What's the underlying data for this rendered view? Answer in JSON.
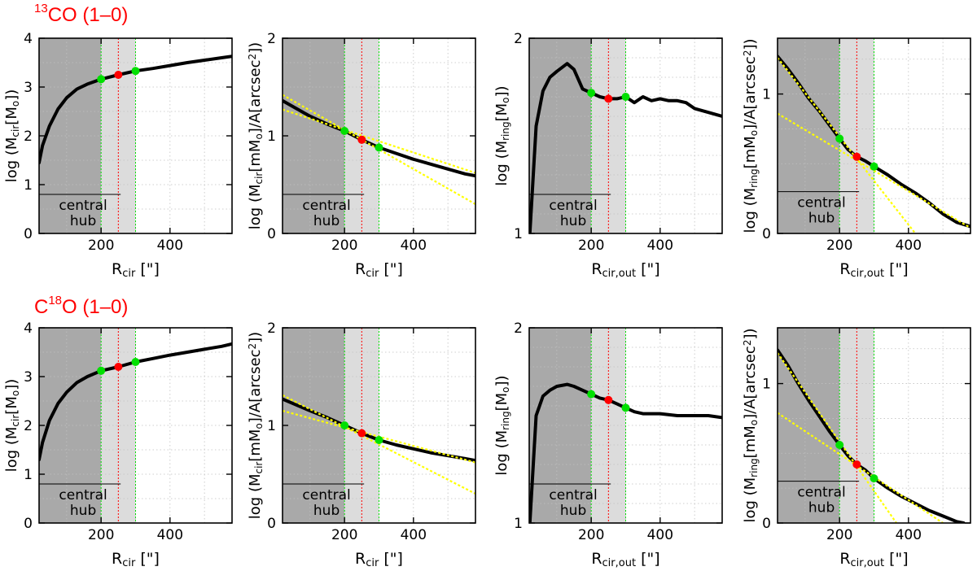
{
  "rows": [
    {
      "title_sup": "13",
      "title_main": "CO  (1–0)"
    },
    {
      "title_main_prefix": "C",
      "title_sup": "18",
      "title_main": "O   (1–0)"
    }
  ],
  "colors": {
    "hub_fill": "#a9a9a9",
    "band_fill": "#dcdcdc",
    "grid": "#c0c0c0",
    "green": "#00e000",
    "red": "#ff0000",
    "fit": "#ffff00",
    "curve": "#000000"
  },
  "chart_data": [
    {
      "type": "line",
      "row": 0,
      "col": 0,
      "ylabel": "log  (M_cir[M_o])",
      "xlabel": "R_cir  [\"]",
      "xlim": [
        20,
        580
      ],
      "ylim": [
        0,
        4
      ],
      "xticks": [
        200,
        400
      ],
      "yticks": [
        0,
        1,
        2,
        3,
        4
      ],
      "hub": [
        20,
        200
      ],
      "band": [
        200,
        300
      ],
      "red_line": 250,
      "hub_label": [
        "central",
        "hub"
      ],
      "hub_label_top": 0.8,
      "series": [
        {
          "name": "curve",
          "x": [
            20,
            30,
            50,
            75,
            100,
            130,
            160,
            200,
            250,
            300,
            350,
            400,
            450,
            500,
            550,
            580
          ],
          "y": [
            1.45,
            1.8,
            2.2,
            2.55,
            2.78,
            2.96,
            3.06,
            3.16,
            3.25,
            3.33,
            3.38,
            3.44,
            3.5,
            3.55,
            3.6,
            3.63
          ]
        }
      ],
      "markers": [
        {
          "x": 200,
          "y": 3.16,
          "color": "green"
        },
        {
          "x": 250,
          "y": 3.25,
          "color": "red"
        },
        {
          "x": 300,
          "y": 3.33,
          "color": "green"
        }
      ]
    },
    {
      "type": "line",
      "row": 0,
      "col": 1,
      "ylabel": "log  (M_cir[mM_o]/A[arcsec^2])",
      "xlabel": "R_cir  [\"]",
      "xlim": [
        20,
        580
      ],
      "ylim": [
        0,
        2
      ],
      "xticks": [
        200,
        400
      ],
      "yticks": [
        0,
        1,
        2
      ],
      "hub": [
        20,
        200
      ],
      "band": [
        200,
        300
      ],
      "red_line": 250,
      "hub_label": [
        "central",
        "hub"
      ],
      "hub_label_top": 0.4,
      "series": [
        {
          "name": "curve",
          "x": [
            20,
            60,
            100,
            150,
            200,
            250,
            300,
            350,
            400,
            450,
            500,
            550,
            580
          ],
          "y": [
            1.36,
            1.28,
            1.2,
            1.12,
            1.05,
            0.96,
            0.88,
            0.82,
            0.76,
            0.71,
            0.66,
            0.61,
            0.59
          ]
        }
      ],
      "fits": [
        {
          "x": [
            20,
            580
          ],
          "y": [
            1.42,
            0.3
          ]
        },
        {
          "x": [
            20,
            580
          ],
          "y": [
            1.27,
            0.62
          ]
        }
      ],
      "markers": [
        {
          "x": 200,
          "y": 1.05,
          "color": "green"
        },
        {
          "x": 250,
          "y": 0.96,
          "color": "red"
        },
        {
          "x": 300,
          "y": 0.88,
          "color": "green"
        }
      ]
    },
    {
      "type": "line",
      "row": 0,
      "col": 2,
      "ylabel": "log  (M_ring[M_o])",
      "xlabel": "R_cir,out  [\"]",
      "xlim": [
        20,
        580
      ],
      "ylim": [
        1,
        2
      ],
      "xticks": [
        200,
        400
      ],
      "yticks": [
        1,
        2
      ],
      "hub": [
        20,
        200
      ],
      "band": [
        200,
        300
      ],
      "red_line": 250,
      "hub_label": [
        "central",
        "hub"
      ],
      "hub_label_top": 1.2,
      "series": [
        {
          "name": "curve",
          "x": [
            22,
            40,
            60,
            80,
            100,
            130,
            150,
            175,
            200,
            225,
            250,
            275,
            300,
            325,
            350,
            375,
            400,
            425,
            450,
            475,
            500,
            540,
            580
          ],
          "y": [
            1.0,
            1.55,
            1.73,
            1.8,
            1.83,
            1.87,
            1.84,
            1.74,
            1.72,
            1.7,
            1.69,
            1.69,
            1.7,
            1.67,
            1.7,
            1.68,
            1.69,
            1.68,
            1.68,
            1.67,
            1.64,
            1.62,
            1.6
          ]
        }
      ],
      "markers": [
        {
          "x": 200,
          "y": 1.72,
          "color": "green"
        },
        {
          "x": 250,
          "y": 1.69,
          "color": "red"
        },
        {
          "x": 300,
          "y": 1.7,
          "color": "green"
        }
      ]
    },
    {
      "type": "line",
      "row": 0,
      "col": 3,
      "ylabel": "log  (M_ring[mM_o]/A[arcsec^2])",
      "xlabel": "R_cir,out  [\"]",
      "xlim": [
        20,
        580
      ],
      "ylim": [
        0,
        1.4
      ],
      "xticks": [
        200,
        400
      ],
      "yticks": [
        0,
        1
      ],
      "hub": [
        20,
        200
      ],
      "band": [
        200,
        300
      ],
      "red_line": 250,
      "hub_label": [
        "central",
        "hub"
      ],
      "hub_label_top": 0.3,
      "series": [
        {
          "name": "curve",
          "x": [
            20,
            50,
            80,
            110,
            140,
            170,
            200,
            225,
            250,
            275,
            300,
            340,
            380,
            420,
            460,
            500,
            540,
            580
          ],
          "y": [
            1.27,
            1.18,
            1.08,
            0.97,
            0.88,
            0.78,
            0.68,
            0.6,
            0.55,
            0.52,
            0.48,
            0.42,
            0.35,
            0.29,
            0.22,
            0.14,
            0.08,
            0.05
          ]
        }
      ],
      "fits": [
        {
          "x": [
            20,
            420
          ],
          "y": [
            1.26,
            0.0
          ]
        },
        {
          "x": [
            20,
            580
          ],
          "y": [
            0.86,
            0.04
          ]
        }
      ],
      "markers": [
        {
          "x": 200,
          "y": 0.68,
          "color": "green"
        },
        {
          "x": 250,
          "y": 0.55,
          "color": "red"
        },
        {
          "x": 300,
          "y": 0.48,
          "color": "green"
        }
      ]
    },
    {
      "type": "line",
      "row": 1,
      "col": 0,
      "ylabel": "log  (M_cir[M_o])",
      "xlabel": "R_cir  [\"]",
      "xlim": [
        20,
        580
      ],
      "ylim": [
        0,
        4
      ],
      "xticks": [
        200,
        400
      ],
      "yticks": [
        0,
        1,
        2,
        3,
        4
      ],
      "hub": [
        20,
        200
      ],
      "band": [
        200,
        300
      ],
      "red_line": 250,
      "hub_label": [
        "central",
        "hub"
      ],
      "hub_label_top": 0.8,
      "series": [
        {
          "name": "curve",
          "x": [
            20,
            30,
            50,
            75,
            100,
            130,
            160,
            200,
            250,
            300,
            350,
            400,
            450,
            500,
            550,
            580
          ],
          "y": [
            1.3,
            1.65,
            2.1,
            2.45,
            2.68,
            2.88,
            3.0,
            3.12,
            3.2,
            3.3,
            3.37,
            3.44,
            3.5,
            3.56,
            3.62,
            3.67
          ]
        }
      ],
      "markers": [
        {
          "x": 200,
          "y": 3.12,
          "color": "green"
        },
        {
          "x": 250,
          "y": 3.2,
          "color": "red"
        },
        {
          "x": 300,
          "y": 3.3,
          "color": "green"
        }
      ]
    },
    {
      "type": "line",
      "row": 1,
      "col": 1,
      "ylabel": "log  (M_cir[mM_o]/A[arcsec^2])",
      "xlabel": "R_cir  [\"]",
      "xlim": [
        20,
        580
      ],
      "ylim": [
        0,
        2
      ],
      "xticks": [
        200,
        400
      ],
      "yticks": [
        0,
        1,
        2
      ],
      "hub": [
        20,
        200
      ],
      "band": [
        200,
        300
      ],
      "red_line": 250,
      "hub_label": [
        "central",
        "hub"
      ],
      "hub_label_top": 0.4,
      "series": [
        {
          "name": "curve",
          "x": [
            20,
            60,
            100,
            150,
            200,
            250,
            300,
            350,
            400,
            450,
            500,
            550,
            580
          ],
          "y": [
            1.27,
            1.21,
            1.15,
            1.08,
            1.0,
            0.92,
            0.85,
            0.8,
            0.76,
            0.72,
            0.69,
            0.66,
            0.64
          ]
        }
      ],
      "fits": [
        {
          "x": [
            20,
            580
          ],
          "y": [
            1.31,
            0.3
          ]
        },
        {
          "x": [
            20,
            580
          ],
          "y": [
            1.15,
            0.62
          ]
        }
      ],
      "markers": [
        {
          "x": 200,
          "y": 1.0,
          "color": "green"
        },
        {
          "x": 250,
          "y": 0.92,
          "color": "red"
        },
        {
          "x": 300,
          "y": 0.85,
          "color": "green"
        }
      ]
    },
    {
      "type": "line",
      "row": 1,
      "col": 2,
      "ylabel": "log  (M_ring[M_o])",
      "xlabel": "R_cir,out  [\"]",
      "xlim": [
        20,
        580
      ],
      "ylim": [
        1,
        2
      ],
      "xticks": [
        200,
        400
      ],
      "yticks": [
        1,
        2
      ],
      "hub": [
        20,
        200
      ],
      "band": [
        200,
        300
      ],
      "red_line": 250,
      "hub_label": [
        "central",
        "hub"
      ],
      "hub_label_top": 1.2,
      "series": [
        {
          "name": "curve",
          "x": [
            22,
            40,
            60,
            80,
            100,
            130,
            150,
            175,
            200,
            225,
            250,
            275,
            300,
            325,
            350,
            400,
            450,
            500,
            540,
            580
          ],
          "y": [
            1.0,
            1.55,
            1.65,
            1.68,
            1.7,
            1.71,
            1.7,
            1.68,
            1.66,
            1.64,
            1.63,
            1.61,
            1.59,
            1.57,
            1.56,
            1.56,
            1.55,
            1.55,
            1.55,
            1.54
          ]
        }
      ],
      "markers": [
        {
          "x": 200,
          "y": 1.66,
          "color": "green"
        },
        {
          "x": 250,
          "y": 1.63,
          "color": "red"
        },
        {
          "x": 300,
          "y": 1.59,
          "color": "green"
        }
      ]
    },
    {
      "type": "line",
      "row": 1,
      "col": 3,
      "ylabel": "log  (M_ring[mM_o]/A[arcsec^2])",
      "xlabel": "R_cir,out  [\"]",
      "xlim": [
        20,
        580
      ],
      "ylim": [
        0,
        1.4
      ],
      "xticks": [
        200,
        400
      ],
      "yticks": [
        0,
        1
      ],
      "hub": [
        20,
        200
      ],
      "band": [
        200,
        300
      ],
      "red_line": 250,
      "hub_label": [
        "central",
        "hub"
      ],
      "hub_label_top": 0.3,
      "series": [
        {
          "name": "curve",
          "x": [
            20,
            50,
            80,
            110,
            140,
            170,
            200,
            225,
            250,
            275,
            300,
            340,
            380,
            420,
            460,
            500,
            540,
            560
          ],
          "y": [
            1.24,
            1.13,
            1.0,
            0.88,
            0.77,
            0.66,
            0.56,
            0.48,
            0.42,
            0.38,
            0.32,
            0.25,
            0.19,
            0.14,
            0.09,
            0.05,
            0.01,
            0.0
          ]
        }
      ],
      "fits": [
        {
          "x": [
            20,
            365
          ],
          "y": [
            1.22,
            0.0
          ]
        },
        {
          "x": [
            20,
            500
          ],
          "y": [
            0.79,
            0.0
          ]
        }
      ],
      "markers": [
        {
          "x": 200,
          "y": 0.56,
          "color": "green"
        },
        {
          "x": 250,
          "y": 0.42,
          "color": "red"
        },
        {
          "x": 300,
          "y": 0.32,
          "color": "green"
        }
      ]
    }
  ]
}
